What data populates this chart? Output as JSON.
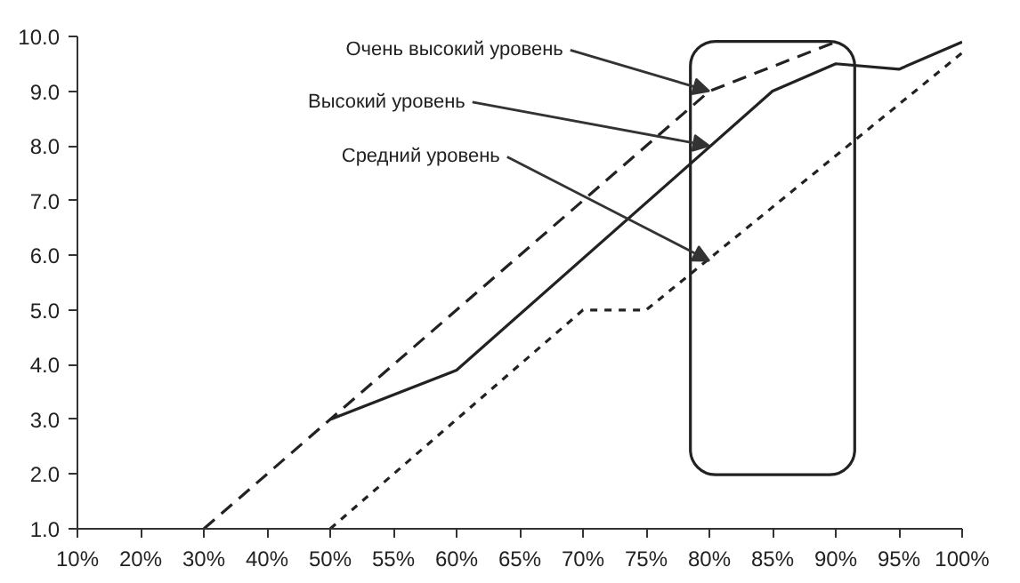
{
  "chart_data": {
    "type": "line",
    "categories": [
      "10%",
      "20%",
      "30%",
      "40%",
      "50%",
      "55%",
      "60%",
      "65%",
      "70%",
      "75%",
      "80%",
      "85%",
      "90%",
      "95%",
      "100%"
    ],
    "series": [
      {
        "x": [
          "30%",
          "50%",
          "80%",
          "90%"
        ],
        "values": [
          1.0,
          3.0,
          9.0,
          9.9
        ],
        "color": "#222222",
        "line_style": "dashed"
      },
      {
        "x": [
          "50%",
          "60%",
          "85%",
          "90%",
          "95%",
          "100%"
        ],
        "values": [
          3.0,
          3.9,
          9.0,
          9.5,
          9.4,
          9.9
        ],
        "color": "#222222",
        "line_style": "solid"
      },
      {
        "x": [
          "50%",
          "70%",
          "75%",
          "100%"
        ],
        "values": [
          1.0,
          5.0,
          5.0,
          9.7
        ],
        "color": "#222222",
        "line_style": "dotted"
      }
    ],
    "ylim": [
      1.0,
      10.0
    ],
    "yticks": [
      {
        "value": 1,
        "label": "1.0"
      },
      {
        "value": 2,
        "label": "2.0"
      },
      {
        "value": 3,
        "label": "3.0"
      },
      {
        "value": 4,
        "label": "4.0"
      },
      {
        "value": 5,
        "label": "5.0"
      },
      {
        "value": 6,
        "label": "6.0"
      },
      {
        "value": 7,
        "label": "7.0"
      },
      {
        "value": 8,
        "label": "8.0"
      },
      {
        "value": 9,
        "label": "9.0"
      },
      {
        "value": 10,
        "label": "10.0"
      }
    ],
    "annotations": [
      {
        "text": "Очень высокий уровень",
        "x": "80%",
        "y": 9.0
      },
      {
        "text": "Высокий уровень",
        "x": "80%",
        "y": 8.0
      },
      {
        "text": "Средний уровень",
        "x": "80%",
        "y": 5.9
      }
    ],
    "grid": false,
    "marker": "none"
  }
}
